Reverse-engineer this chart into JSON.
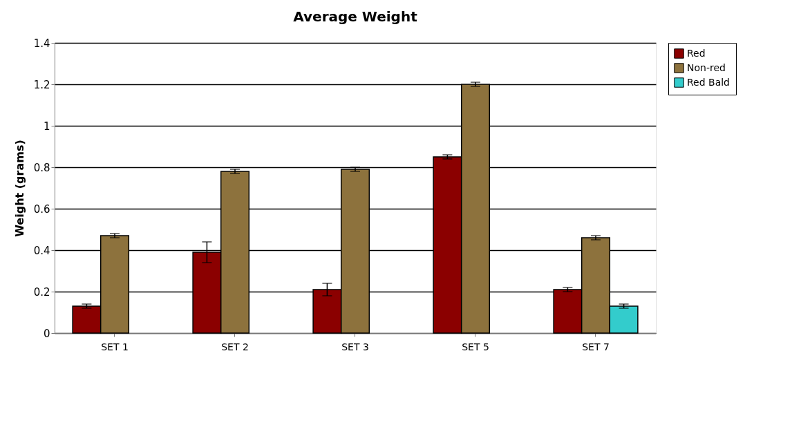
{
  "chart_data": {
    "type": "bar",
    "title": "Average Weight",
    "ylabel": "Weight (grams)",
    "categories": [
      "SET 1",
      "SET 2",
      "SET 3",
      "SET 5",
      "SET 7"
    ],
    "series": [
      {
        "name": "Red",
        "color": "#8b0000",
        "values": [
          0.13,
          0.39,
          0.21,
          0.85,
          0.21
        ],
        "errors": [
          0.01,
          0.05,
          0.03,
          0.01,
          0.01
        ]
      },
      {
        "name": "Non-red",
        "color": "#8d723d",
        "values": [
          0.47,
          0.78,
          0.79,
          1.2,
          0.46
        ],
        "errors": [
          0.01,
          0.01,
          0.01,
          0.01,
          0.01
        ]
      },
      {
        "name": "Red Bald",
        "color": "#33cccc",
        "values": [
          null,
          null,
          null,
          null,
          0.13
        ],
        "errors": [
          null,
          null,
          null,
          null,
          0.01
        ]
      }
    ],
    "ylim": [
      0,
      1.4
    ],
    "yticks": [
      0,
      0.2,
      0.4,
      0.6,
      0.8,
      1,
      1.2,
      1.4
    ],
    "grid": "y",
    "legend": "right"
  }
}
